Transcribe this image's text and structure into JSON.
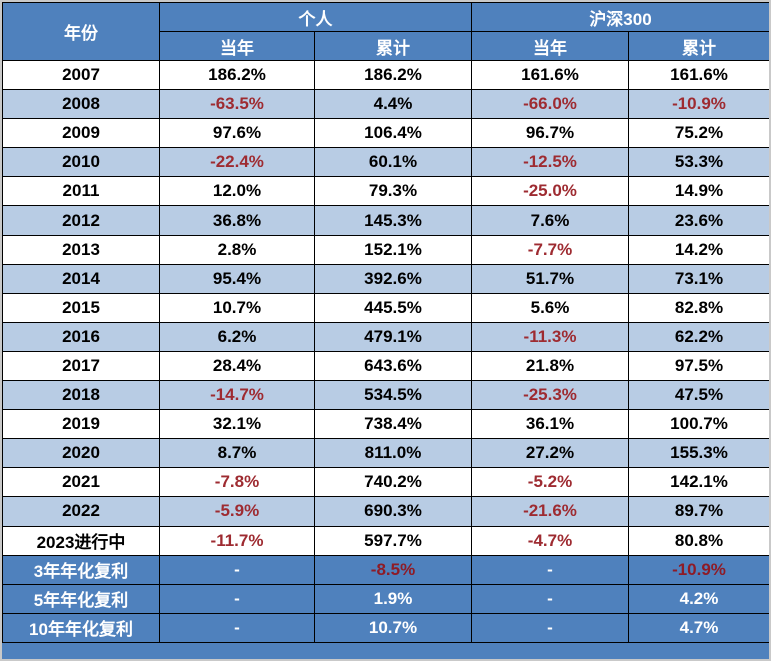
{
  "chart_data": {
    "type": "table",
    "title": "",
    "header": {
      "year_col": "年份",
      "group_personal": "个人",
      "group_csi300": "沪深300",
      "subheaders": [
        "当年",
        "累计",
        "当年",
        "累计"
      ]
    },
    "rows": [
      {
        "year": "2007",
        "values": [
          "186.2%",
          "186.2%",
          "161.6%",
          "161.6%"
        ]
      },
      {
        "year": "2008",
        "values": [
          "-63.5%",
          "4.4%",
          "-66.0%",
          "-10.9%"
        ]
      },
      {
        "year": "2009",
        "values": [
          "97.6%",
          "106.4%",
          "96.7%",
          "75.2%"
        ]
      },
      {
        "year": "2010",
        "values": [
          "-22.4%",
          "60.1%",
          "-12.5%",
          "53.3%"
        ]
      },
      {
        "year": "2011",
        "values": [
          "12.0%",
          "79.3%",
          "-25.0%",
          "14.9%"
        ]
      },
      {
        "year": "2012",
        "values": [
          "36.8%",
          "145.3%",
          "7.6%",
          "23.6%"
        ]
      },
      {
        "year": "2013",
        "values": [
          "2.8%",
          "152.1%",
          "-7.7%",
          "14.2%"
        ]
      },
      {
        "year": "2014",
        "values": [
          "95.4%",
          "392.6%",
          "51.7%",
          "73.1%"
        ]
      },
      {
        "year": "2015",
        "values": [
          "10.7%",
          "445.5%",
          "5.6%",
          "82.8%"
        ]
      },
      {
        "year": "2016",
        "values": [
          "6.2%",
          "479.1%",
          "-11.3%",
          "62.2%"
        ]
      },
      {
        "year": "2017",
        "values": [
          "28.4%",
          "643.6%",
          "21.8%",
          "97.5%"
        ]
      },
      {
        "year": "2018",
        "values": [
          "-14.7%",
          "534.5%",
          "-25.3%",
          "47.5%"
        ]
      },
      {
        "year": "2019",
        "values": [
          "32.1%",
          "738.4%",
          "36.1%",
          "100.7%"
        ]
      },
      {
        "year": "2020",
        "values": [
          "8.7%",
          "811.0%",
          "27.2%",
          "155.3%"
        ]
      },
      {
        "year": "2021",
        "values": [
          "-7.8%",
          "740.2%",
          "-5.2%",
          "142.1%"
        ]
      },
      {
        "year": "2022",
        "values": [
          "-5.9%",
          "690.3%",
          "-21.6%",
          "89.7%"
        ]
      },
      {
        "year": "2023进行中",
        "values": [
          "-11.7%",
          "597.7%",
          "-4.7%",
          "80.8%"
        ]
      }
    ],
    "summary_rows": [
      {
        "label": "3年年化复利",
        "values": [
          "-",
          "-8.5%",
          "-",
          "-10.9%"
        ]
      },
      {
        "label": "5年年化复利",
        "values": [
          "-",
          "1.9%",
          "-",
          "4.2%"
        ]
      },
      {
        "label": "10年年化复利",
        "values": [
          "-",
          "10.7%",
          "-",
          "4.7%"
        ]
      }
    ],
    "colors": {
      "header_bg": "#4F81BD",
      "stripe_bg": "#B8CCE4",
      "row_bg": "#FFFFFF",
      "negative_text": "#9E2B31",
      "header_text": "#FFFFFF",
      "body_text": "#000000",
      "border": "#000000"
    },
    "layout": {
      "striped": true,
      "grid": true
    }
  }
}
